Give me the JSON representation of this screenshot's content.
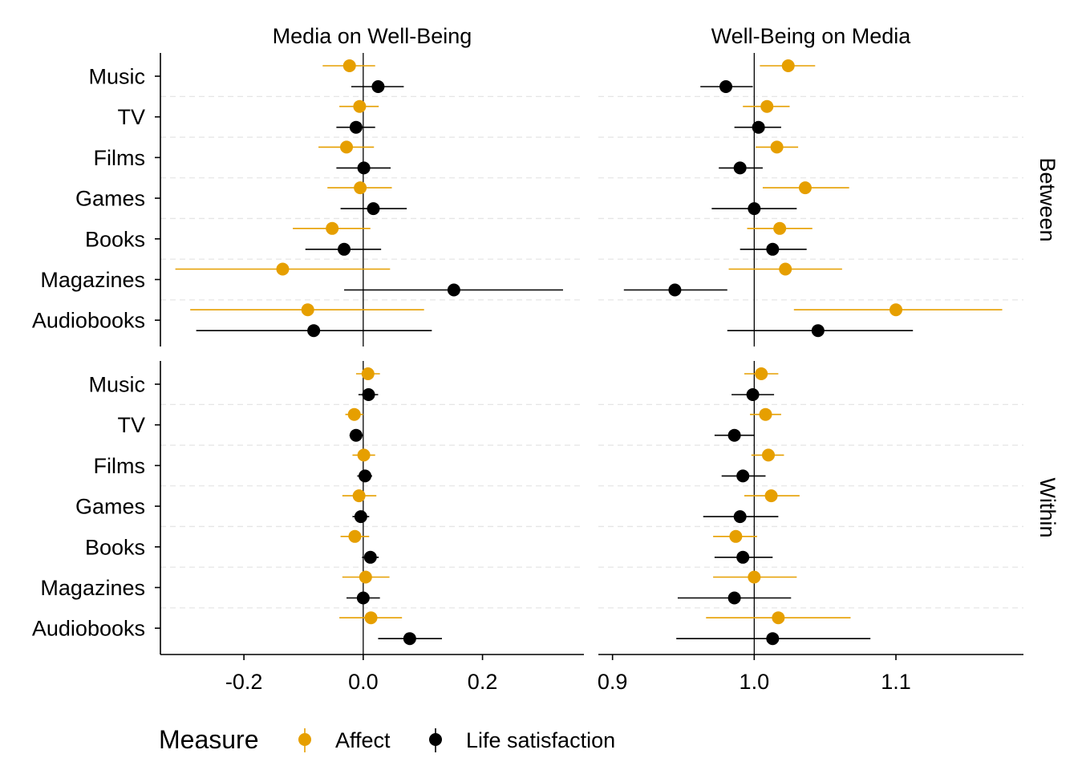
{
  "chart_data": {
    "type": "dot-whisker",
    "facet_columns": [
      "Media on Well-Being",
      "Well-Being on Media"
    ],
    "facet_rows": [
      "Between",
      "Within"
    ],
    "categories": [
      "Music",
      "TV",
      "Films",
      "Games",
      "Books",
      "Magazines",
      "Audiobooks"
    ],
    "legend": {
      "title": "Measure",
      "position": "bottom",
      "items": [
        "Affect",
        "Life satisfaction"
      ]
    },
    "colors": {
      "Affect": "#E69F00",
      "Life satisfaction": "#000000"
    },
    "x_axes": [
      {
        "ticks": [
          -0.2,
          0.0,
          0.2
        ],
        "tick_labels": [
          "-0.2",
          "0.0",
          "0.2"
        ],
        "xlim": [
          -0.34,
          0.37
        ],
        "reference": 0.0
      },
      {
        "ticks": [
          0.9,
          1.0,
          1.1
        ],
        "tick_labels": [
          "0.9",
          "1.0",
          "1.1"
        ],
        "xlim": [
          0.89,
          1.19
        ],
        "reference": 1.0
      }
    ],
    "panels": [
      {
        "column": 0,
        "row": 0,
        "series": [
          {
            "name": "Affect",
            "points": [
              {
                "category": "Music",
                "est": -0.023,
                "lo": -0.068,
                "hi": 0.02
              },
              {
                "category": "TV",
                "est": -0.006,
                "lo": -0.04,
                "hi": 0.026
              },
              {
                "category": "Films",
                "est": -0.028,
                "lo": -0.075,
                "hi": 0.018
              },
              {
                "category": "Games",
                "est": -0.005,
                "lo": -0.06,
                "hi": 0.048
              },
              {
                "category": "Books",
                "est": -0.052,
                "lo": -0.118,
                "hi": 0.012
              },
              {
                "category": "Magazines",
                "est": -0.135,
                "lo": -0.315,
                "hi": 0.045
              },
              {
                "category": "Audiobooks",
                "est": -0.093,
                "lo": -0.29,
                "hi": 0.102
              }
            ]
          },
          {
            "name": "Life satisfaction",
            "points": [
              {
                "category": "Music",
                "est": 0.025,
                "lo": -0.02,
                "hi": 0.068
              },
              {
                "category": "TV",
                "est": -0.012,
                "lo": -0.045,
                "hi": 0.02
              },
              {
                "category": "Films",
                "est": 0.001,
                "lo": -0.045,
                "hi": 0.046
              },
              {
                "category": "Games",
                "est": 0.017,
                "lo": -0.038,
                "hi": 0.073
              },
              {
                "category": "Books",
                "est": -0.032,
                "lo": -0.097,
                "hi": 0.03
              },
              {
                "category": "Magazines",
                "est": 0.152,
                "lo": -0.032,
                "hi": 0.335
              },
              {
                "category": "Audiobooks",
                "est": -0.083,
                "lo": -0.28,
                "hi": 0.115
              }
            ]
          }
        ]
      },
      {
        "column": 1,
        "row": 0,
        "series": [
          {
            "name": "Affect",
            "points": [
              {
                "category": "Music",
                "est": 1.024,
                "lo": 1.004,
                "hi": 1.043
              },
              {
                "category": "TV",
                "est": 1.009,
                "lo": 0.992,
                "hi": 1.025
              },
              {
                "category": "Films",
                "est": 1.016,
                "lo": 1.001,
                "hi": 1.031
              },
              {
                "category": "Games",
                "est": 1.036,
                "lo": 1.006,
                "hi": 1.067
              },
              {
                "category": "Books",
                "est": 1.018,
                "lo": 0.995,
                "hi": 1.041
              },
              {
                "category": "Magazines",
                "est": 1.022,
                "lo": 0.982,
                "hi": 1.062
              },
              {
                "category": "Audiobooks",
                "est": 1.1,
                "lo": 1.028,
                "hi": 1.175
              }
            ]
          },
          {
            "name": "Life satisfaction",
            "points": [
              {
                "category": "Music",
                "est": 0.98,
                "lo": 0.962,
                "hi": 0.999
              },
              {
                "category": "TV",
                "est": 1.003,
                "lo": 0.986,
                "hi": 1.019
              },
              {
                "category": "Films",
                "est": 0.99,
                "lo": 0.975,
                "hi": 1.006
              },
              {
                "category": "Games",
                "est": 1.0,
                "lo": 0.97,
                "hi": 1.03
              },
              {
                "category": "Books",
                "est": 1.013,
                "lo": 0.99,
                "hi": 1.037
              },
              {
                "category": "Magazines",
                "est": 0.944,
                "lo": 0.908,
                "hi": 0.981
              },
              {
                "category": "Audiobooks",
                "est": 1.045,
                "lo": 0.981,
                "hi": 1.112
              }
            ]
          }
        ]
      },
      {
        "column": 0,
        "row": 1,
        "series": [
          {
            "name": "Affect",
            "points": [
              {
                "category": "Music",
                "est": 0.008,
                "lo": -0.012,
                "hi": 0.028
              },
              {
                "category": "TV",
                "est": -0.015,
                "lo": -0.03,
                "hi": 0.0
              },
              {
                "category": "Films",
                "est": 0.001,
                "lo": -0.018,
                "hi": 0.02
              },
              {
                "category": "Games",
                "est": -0.007,
                "lo": -0.035,
                "hi": 0.022
              },
              {
                "category": "Books",
                "est": -0.014,
                "lo": -0.038,
                "hi": 0.01
              },
              {
                "category": "Magazines",
                "est": 0.004,
                "lo": -0.035,
                "hi": 0.044
              },
              {
                "category": "Audiobooks",
                "est": 0.013,
                "lo": -0.04,
                "hi": 0.065
              }
            ]
          },
          {
            "name": "Life satisfaction",
            "points": [
              {
                "category": "Music",
                "est": 0.009,
                "lo": -0.008,
                "hi": 0.025
              },
              {
                "category": "TV",
                "est": -0.012,
                "lo": -0.023,
                "hi": 0.0
              },
              {
                "category": "Films",
                "est": 0.003,
                "lo": -0.01,
                "hi": 0.015
              },
              {
                "category": "Games",
                "est": -0.004,
                "lo": -0.018,
                "hi": 0.01
              },
              {
                "category": "Books",
                "est": 0.012,
                "lo": -0.002,
                "hi": 0.026
              },
              {
                "category": "Magazines",
                "est": 0.0,
                "lo": -0.028,
                "hi": 0.028
              },
              {
                "category": "Audiobooks",
                "est": 0.078,
                "lo": 0.025,
                "hi": 0.132
              }
            ]
          }
        ]
      },
      {
        "column": 1,
        "row": 1,
        "series": [
          {
            "name": "Affect",
            "points": [
              {
                "category": "Music",
                "est": 1.005,
                "lo": 0.993,
                "hi": 1.017
              },
              {
                "category": "TV",
                "est": 1.008,
                "lo": 0.997,
                "hi": 1.019
              },
              {
                "category": "Films",
                "est": 1.01,
                "lo": 0.998,
                "hi": 1.021
              },
              {
                "category": "Games",
                "est": 1.012,
                "lo": 0.993,
                "hi": 1.032
              },
              {
                "category": "Books",
                "est": 0.987,
                "lo": 0.971,
                "hi": 1.002
              },
              {
                "category": "Magazines",
                "est": 1.0,
                "lo": 0.971,
                "hi": 1.03
              },
              {
                "category": "Audiobooks",
                "est": 1.017,
                "lo": 0.966,
                "hi": 1.068
              }
            ]
          },
          {
            "name": "Life satisfaction",
            "points": [
              {
                "category": "Music",
                "est": 0.999,
                "lo": 0.984,
                "hi": 1.014
              },
              {
                "category": "TV",
                "est": 0.986,
                "lo": 0.972,
                "hi": 1.0
              },
              {
                "category": "Films",
                "est": 0.992,
                "lo": 0.977,
                "hi": 1.008
              },
              {
                "category": "Games",
                "est": 0.99,
                "lo": 0.964,
                "hi": 1.017
              },
              {
                "category": "Books",
                "est": 0.992,
                "lo": 0.972,
                "hi": 1.013
              },
              {
                "category": "Magazines",
                "est": 0.986,
                "lo": 0.946,
                "hi": 1.026
              },
              {
                "category": "Audiobooks",
                "est": 1.013,
                "lo": 0.945,
                "hi": 1.082
              }
            ]
          }
        ]
      }
    ]
  }
}
